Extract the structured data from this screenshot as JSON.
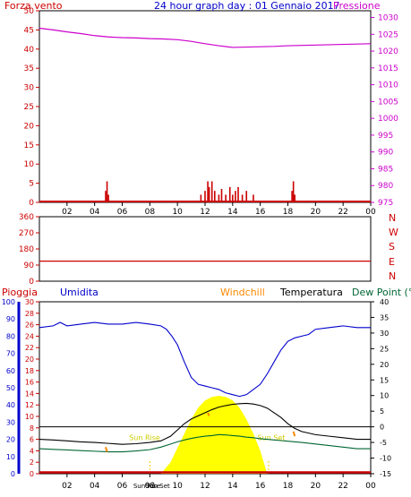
{
  "title": "24 hour graph day : 01 Gennaio 2017",
  "colors": {
    "wind": "#cc0000",
    "pressure": "#cc00cc",
    "humidity": "#0000cc",
    "temperature": "#000000",
    "dewpoint": "#006633",
    "windchill": "#ff8800",
    "solar": "#ffff00",
    "rain": "#cc0000",
    "axis_blue": "#0000cc",
    "axis_green": "#006633"
  },
  "chart_data": [
    {
      "type": "line",
      "panel": "wind-pressure",
      "title": "24 hour graph day : 01 Gennaio 2017",
      "left_label": "Forza vento",
      "right_label": "Pressione",
      "x_ticks": [
        "02",
        "04",
        "06",
        "08",
        "10",
        "12",
        "14",
        "16",
        "18",
        "20",
        "22",
        "00"
      ],
      "y_ticks": [
        0,
        5,
        10,
        15,
        20,
        25,
        30,
        35,
        40,
        45,
        50
      ],
      "y2_ticks": [
        975,
        980,
        985,
        990,
        995,
        1000,
        1005,
        1010,
        1015,
        1020,
        1025,
        1030
      ],
      "ylim": [
        0,
        50
      ],
      "y2lim": [
        975,
        1032
      ],
      "series": [
        {
          "name": "Pressione",
          "x": [
            0,
            1,
            2,
            3,
            4,
            5,
            6,
            7,
            8,
            9,
            10,
            11,
            12,
            13,
            14,
            15,
            16,
            17,
            18,
            19,
            20,
            21,
            22,
            23,
            24
          ],
          "values": [
            1026.8,
            1026.3,
            1025.7,
            1025.2,
            1024.6,
            1024.2,
            1024.0,
            1023.9,
            1023.7,
            1023.6,
            1023.4,
            1022.9,
            1022.2,
            1021.6,
            1021.1,
            1021.2,
            1021.3,
            1021.4,
            1021.6,
            1021.7,
            1021.8,
            1021.9,
            1022.0,
            1022.1,
            1022.2
          ]
        },
        {
          "name": "Forza vento",
          "type": "bar",
          "x": [
            4.8,
            4.9,
            5.0,
            11.7,
            12.0,
            12.2,
            12.3,
            12.5,
            12.7,
            13.0,
            13.2,
            13.5,
            13.8,
            14.0,
            14.2,
            14.4,
            14.7,
            15.0,
            15.5,
            18.3,
            18.4,
            18.5
          ],
          "values": [
            3,
            5.5,
            2,
            2,
            3,
            5.5,
            4,
            5.5,
            3,
            2,
            3.5,
            2,
            4,
            2,
            3,
            4,
            2,
            3,
            2,
            3,
            5.5,
            2
          ]
        }
      ]
    },
    {
      "type": "line",
      "panel": "wind-direction",
      "right_labels": [
        "N",
        "W",
        "S",
        "E",
        "N"
      ],
      "y_ticks": [
        0,
        90,
        180,
        270,
        360
      ],
      "ylim": [
        0,
        360
      ],
      "series": [
        {
          "name": "Direzione",
          "x": [
            0,
            24
          ],
          "values": [
            112,
            112
          ]
        }
      ]
    },
    {
      "type": "line",
      "panel": "temperature-humidity",
      "labels": {
        "rain": "Pioggia",
        "humidity": "Umidita",
        "windchill": "Windchill",
        "temperature": "Temperatura",
        "dewpoint": "Dew Point (°C"
      },
      "x_ticks": [
        "02",
        "04",
        "06",
        "08",
        "10",
        "12",
        "14",
        "16",
        "18",
        "20",
        "22",
        "00"
      ],
      "humidity_ticks": [
        0,
        10,
        20,
        30,
        40,
        50,
        60,
        70,
        80,
        90,
        100
      ],
      "rain_ticks": [
        0,
        2,
        4,
        6,
        8,
        10,
        12,
        14,
        16,
        18,
        20,
        22,
        24,
        26,
        28,
        30
      ],
      "temp_ticks": [
        40,
        35,
        30,
        25,
        20,
        15,
        10,
        5,
        0,
        -5,
        -10,
        -15
      ],
      "ylim_humidity": [
        0,
        100
      ],
      "ylim_rain": [
        0,
        30
      ],
      "ylim_temp": [
        -15,
        40
      ],
      "annotations": [
        "Sun Rise",
        "Sun Set",
        "Sun Rise",
        "Sun Set"
      ],
      "series": [
        {
          "name": "Umidita",
          "x": [
            0,
            1,
            1.5,
            2,
            3,
            4,
            5,
            6,
            7,
            8,
            8.8,
            9.2,
            9.6,
            10,
            10.5,
            11,
            11.5,
            12,
            12.5,
            13,
            13.5,
            14,
            14.5,
            15,
            15.5,
            16,
            16.5,
            17,
            17.5,
            18,
            18.5,
            19,
            19.5,
            20,
            21,
            22,
            23,
            24
          ],
          "values": [
            85,
            86,
            88,
            86,
            87,
            88,
            87,
            87,
            88,
            87,
            86,
            84,
            80,
            75,
            65,
            56,
            52,
            51,
            50,
            49,
            47,
            46,
            45,
            46,
            49,
            52,
            58,
            65,
            72,
            77,
            79,
            80,
            81,
            84,
            85,
            86,
            85,
            85
          ]
        },
        {
          "name": "Temperatura",
          "x": [
            0,
            1,
            2,
            3,
            4,
            5,
            6,
            7,
            8,
            8.8,
            9.5,
            10,
            10.5,
            11,
            11.5,
            12,
            12.5,
            13,
            13.5,
            14,
            14.5,
            15,
            15.5,
            16,
            16.5,
            17,
            17.5,
            18,
            18.5,
            19,
            20,
            21,
            22,
            23,
            24
          ],
          "values": [
            -4,
            -4.2,
            -4.5,
            -4.8,
            -5,
            -5.3,
            -5.6,
            -5.4,
            -5,
            -4.5,
            -3,
            -1,
            1,
            2.5,
            3.5,
            4.5,
            5.5,
            6.3,
            6.8,
            7.2,
            7.4,
            7.5,
            7.3,
            6.8,
            6,
            4.5,
            3,
            1,
            -0.5,
            -1.5,
            -2.5,
            -3,
            -3.5,
            -4,
            -4
          ]
        },
        {
          "name": "Dew Point",
          "x": [
            0,
            1,
            2,
            3,
            4,
            5,
            6,
            7,
            8,
            8.8,
            9.5,
            10,
            10.5,
            11,
            11.5,
            12,
            12.5,
            13,
            13.5,
            14,
            14.5,
            15,
            15.5,
            16,
            16.5,
            17,
            17.5,
            18,
            19,
            20,
            21,
            22,
            23,
            24
          ],
          "values": [
            -7,
            -7.2,
            -7.4,
            -7.6,
            -7.8,
            -8,
            -8,
            -7.7,
            -7.3,
            -6.5,
            -5.5,
            -4.8,
            -4.2,
            -3.7,
            -3.3,
            -3,
            -2.8,
            -2.5,
            -2.6,
            -2.8,
            -3,
            -3.3,
            -3.5,
            -3.8,
            -4,
            -4.2,
            -4.4,
            -4.6,
            -5,
            -5.5,
            -6,
            -6.5,
            -7,
            -7
          ]
        },
        {
          "name": "Windchill",
          "x": [
            4.8,
            4.9,
            12.2,
            12.3,
            18.4,
            18.5
          ],
          "values": [
            -6.5,
            -8,
            4.5,
            3.5,
            -1.5,
            -3
          ]
        },
        {
          "name": "Solare",
          "type": "area",
          "x": [
            8.8,
            9.5,
            10,
            10.5,
            11,
            11.5,
            12,
            12.5,
            13,
            13.5,
            14,
            14.5,
            15,
            15.5,
            16,
            16.5
          ],
          "values": [
            0,
            2,
            4.5,
            7,
            9.5,
            11.5,
            12.8,
            13.4,
            13.6,
            13.4,
            12.8,
            11.5,
            9.5,
            7,
            4,
            0
          ]
        },
        {
          "name": "Pioggia",
          "type": "bar",
          "x": [
            0,
            24
          ],
          "values": [
            0,
            0
          ]
        }
      ]
    }
  ]
}
